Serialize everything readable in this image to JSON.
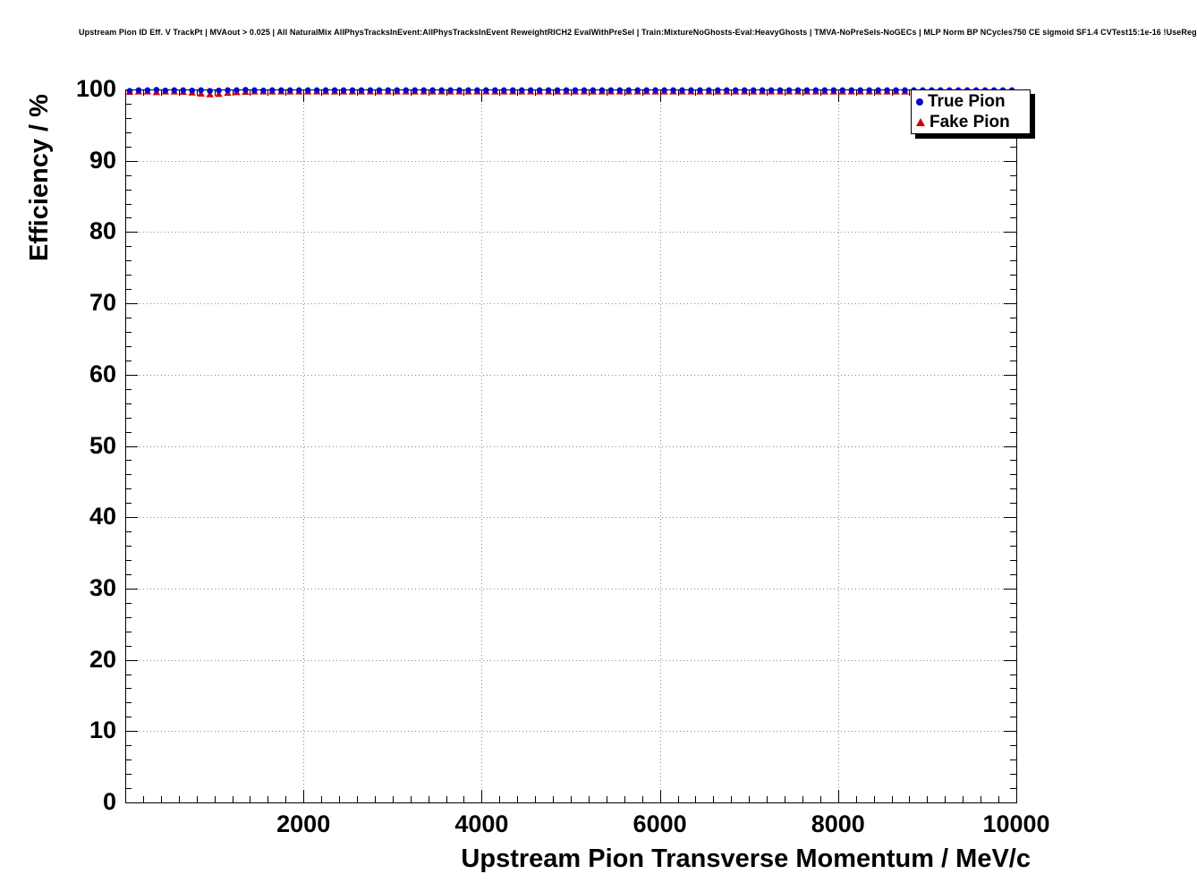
{
  "title": "Upstream Pion ID Eff. V TrackPt | MVAout > 0.025 | All NaturalMix AllPhysTracksInEvent:AllPhysTracksInEvent ReweightRICH2 EvalWithPreSel | Train:MixtureNoGhosts-Eval:HeavyGhosts | TMVA-NoPreSels-NoGECs | MLP Norm BP NCycles750 CE sigmoid SF1.4 CVTest15:1e-16 !UseReg",
  "chart_data": {
    "type": "scatter",
    "title": "Upstream Pion ID Eff. V TrackPt | MVAout > 0.025 | All NaturalMix AllPhysTracksInEvent:AllPhysTracksInEvent ReweightRICH2 EvalWithPreSel | Train:MixtureNoGhosts-Eval:HeavyGhosts | TMVA-NoPreSels-NoGECs | MLP Norm BP NCycles750 CE sigmoid SF1.4 CVTest15:1e-16 !UseReg",
    "xlabel": "Upstream Pion Transverse Momentum / MeV/c",
    "ylabel": "Efficiency / %",
    "xlim": [
      0,
      10000
    ],
    "ylim": [
      0,
      100
    ],
    "x_major_ticks": [
      2000,
      4000,
      6000,
      8000,
      10000
    ],
    "y_major_ticks": [
      0,
      10,
      20,
      30,
      40,
      50,
      60,
      70,
      80,
      90,
      100
    ],
    "x_minor_step": 200,
    "y_minor_step": 2,
    "grid": "dotted",
    "grid_color": "#8a8a8a",
    "legend_position": "top-right",
    "x_start": 50,
    "x_step": 100,
    "series": [
      {
        "name": "True Pion",
        "marker": "circle",
        "color": "#0808cf",
        "values": [
          99.8,
          99.9,
          99.9,
          99.95,
          99.85,
          99.9,
          99.9,
          99.85,
          99.9,
          99.8,
          99.85,
          99.9,
          99.9,
          99.95,
          99.9,
          99.85,
          99.9,
          99.9,
          99.9,
          99.9,
          99.9,
          99.9,
          99.9,
          99.9,
          99.9,
          99.9,
          99.9,
          99.9,
          99.9,
          99.9,
          99.9,
          99.9,
          99.9,
          99.9,
          99.9,
          99.9,
          99.9,
          99.9,
          99.9,
          99.9,
          99.9,
          99.9,
          99.9,
          99.9,
          99.9,
          99.9,
          99.9,
          99.9,
          99.9,
          99.9,
          99.9,
          99.9,
          99.9,
          99.9,
          99.9,
          99.9,
          99.9,
          99.9,
          99.9,
          99.9,
          99.9,
          99.9,
          99.9,
          99.9,
          99.9,
          99.9,
          99.9,
          99.9,
          99.9,
          99.9,
          99.9,
          99.9,
          99.9,
          99.9,
          99.9,
          99.9,
          99.9,
          99.9,
          99.9,
          99.9,
          99.9,
          99.9,
          99.9,
          99.9,
          99.9,
          99.9,
          99.9,
          99.9,
          99.9,
          99.9,
          99.9,
          99.9,
          99.9,
          99.9,
          99.9,
          99.9,
          99.9,
          99.9,
          99.9,
          99.9
        ]
      },
      {
        "name": "Fake Pion",
        "marker": "triangle",
        "color": "#d40000",
        "values": [
          99.65,
          99.7,
          99.7,
          99.6,
          99.7,
          99.7,
          99.65,
          99.55,
          99.4,
          99.3,
          99.35,
          99.5,
          99.6,
          99.65,
          99.7,
          99.7,
          99.7,
          99.7,
          99.7,
          99.7,
          99.7,
          99.7,
          99.7,
          99.7,
          99.7,
          99.7,
          99.7,
          99.7,
          99.7,
          99.7,
          99.7,
          99.7,
          99.7,
          99.7,
          99.7,
          99.7,
          99.7,
          99.7,
          99.7,
          99.7,
          99.7,
          99.7,
          99.7,
          99.7,
          99.7,
          99.7,
          99.7,
          99.7,
          99.7,
          99.7,
          99.7,
          99.7,
          99.7,
          99.7,
          99.7,
          99.7,
          99.7,
          99.7,
          99.7,
          99.7,
          99.7,
          99.7,
          99.7,
          99.7,
          99.7,
          99.7,
          99.7,
          99.7,
          99.7,
          99.7,
          99.7,
          99.7,
          99.7,
          99.7,
          99.7,
          99.7,
          99.7,
          99.7,
          99.7,
          99.7,
          99.7,
          99.7,
          99.7,
          99.7,
          99.7,
          99.7,
          99.7,
          99.7,
          99.7,
          99.7,
          99.7,
          99.7,
          99.7,
          99.7,
          99.7,
          99.7,
          99.7,
          99.7,
          99.7,
          99.7
        ]
      }
    ]
  },
  "legend": {
    "entries": [
      {
        "label": "True Pion",
        "marker": "circle-marker",
        "color": "#0808cf"
      },
      {
        "label": "Fake Pion",
        "marker": "triangle-marker",
        "color": "#d40000"
      }
    ]
  }
}
